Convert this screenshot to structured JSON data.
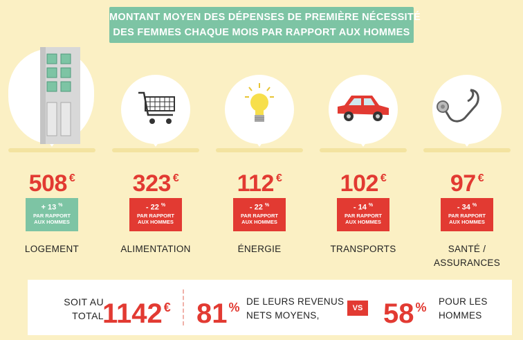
{
  "title": {
    "line1": "MONTANT MOYEN DES DÉPENSES DE PREMIÈRE NÉCESSITÉ",
    "line2": "DES FEMMES CHAQUE MOIS PAR RAPPORT AUX HOMMES"
  },
  "currency": "€",
  "categories": [
    {
      "icon": "building-icon",
      "amount": "508",
      "change": "+ 13",
      "change_unit": "%",
      "change_label_1": "PAR RAPPORT",
      "change_label_2": "AUX HOMMES",
      "label": "LOGEMENT",
      "label2": "",
      "badge_color": "#7dc4a4"
    },
    {
      "icon": "shopping-cart-icon",
      "amount": "323",
      "change": "- 22",
      "change_unit": "%",
      "change_label_1": "PAR RAPPORT",
      "change_label_2": "AUX HOMMES",
      "label": "ALIMENTATION",
      "label2": "",
      "badge_color": "#e23a32"
    },
    {
      "icon": "light-bulb-icon",
      "amount": "112",
      "change": "- 22",
      "change_unit": "%",
      "change_label_1": "PAR RAPPORT",
      "change_label_2": "AUX HOMMES",
      "label": "ÉNERGIE",
      "label2": "",
      "badge_color": "#e23a32"
    },
    {
      "icon": "car-icon",
      "amount": "102",
      "change": "- 14",
      "change_unit": "%",
      "change_label_1": "PAR RAPPORT",
      "change_label_2": "AUX HOMMES",
      "label": "TRANSPORTS",
      "label2": "",
      "badge_color": "#e23a32"
    },
    {
      "icon": "stethoscope-icon",
      "amount": "97",
      "change": "- 34",
      "change_unit": "%",
      "change_label_1": "PAR RAPPORT",
      "change_label_2": "AUX HOMMES",
      "label": "SANTÉ /",
      "label2": "ASSURANCES",
      "badge_color": "#e23a32"
    }
  ],
  "summary": {
    "total_label_1": "SOIT AU",
    "total_label_2": "TOTAL",
    "total_value": "1142",
    "women_pct": "81",
    "pct_unit": "%",
    "women_text_1": "DE LEURS REVENUS",
    "women_text_2": "NETS MOYENS,",
    "vs": "VS",
    "men_pct": "58",
    "men_text_1": "POUR LES",
    "men_text_2": "HOMMES"
  },
  "colors": {
    "accent_red": "#e23a32",
    "accent_green": "#7dc4a4",
    "background": "#fbf0c4"
  }
}
